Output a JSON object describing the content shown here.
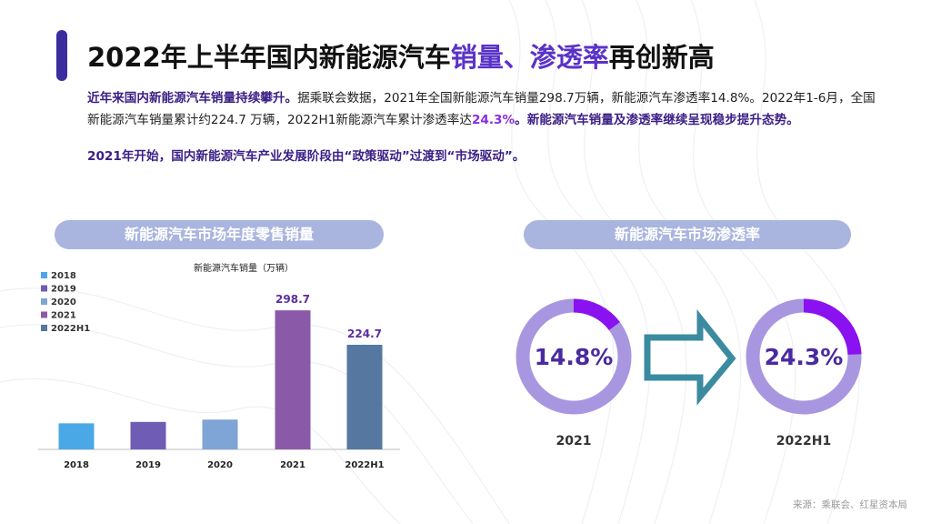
{
  "title": {
    "part1": "2022年上半年国内新能源汽车",
    "part2": "销量、渗透率",
    "part3": "再创新高"
  },
  "intro": {
    "p1_bold": "近年来国内新能源汽车销量持续攀升。",
    "p1_text1": "据乘联会数据，2021年全国新能源汽车销量298.7万辆，新能源汽车渗透率14.8%。2022年1-6月，全国新能源汽车销量累计约224.7 万辆，2022H1新能源汽车累计渗透率达",
    "p1_pct": "24.3%",
    "p1_bold2": "。新能源汽车销量及渗透率继续呈现稳步提升态势。",
    "p2_bold": "2021年开始，国内新能源汽车产业发展阶段由“政策驱动”过渡到“市场驱动”。"
  },
  "sections": {
    "left_title": "新能源汽车市场年度零售销量",
    "right_title": "新能源汽车市场渗透率"
  },
  "colors": {
    "accent": "#3b2d9e",
    "pill": "#a9b5de",
    "arrow_fill": "#3a8ba0",
    "donut_track": "#a996e0",
    "donut_fill": "#8a12f0"
  },
  "chart_data": [
    {
      "type": "bar",
      "title": "新能源汽车销量（万辆）",
      "categories": [
        "2018",
        "2019",
        "2020",
        "2021",
        "2022H1"
      ],
      "values": [
        56,
        59,
        64,
        298.7,
        224.7
      ],
      "data_labels": [
        "",
        "",
        "",
        "298.7",
        "224.7"
      ],
      "colors": [
        "#4aa8e6",
        "#6f5cb5",
        "#7fa4d6",
        "#8a5aa8",
        "#5577a0"
      ],
      "legend": [
        "2018",
        "2019",
        "2020",
        "2021",
        "2022H1"
      ],
      "legend_position": "top-left",
      "ylim": [
        0,
        340
      ],
      "grid": false
    },
    {
      "type": "pie",
      "subtype": "donut",
      "label": "2021",
      "value_label": "14.8%",
      "values": [
        14.8,
        85.2
      ]
    },
    {
      "type": "pie",
      "subtype": "donut",
      "label": "2022H1",
      "value_label": "24.3%",
      "values": [
        24.3,
        75.7
      ]
    }
  ],
  "source": "来源：乘联会、红星资本局"
}
